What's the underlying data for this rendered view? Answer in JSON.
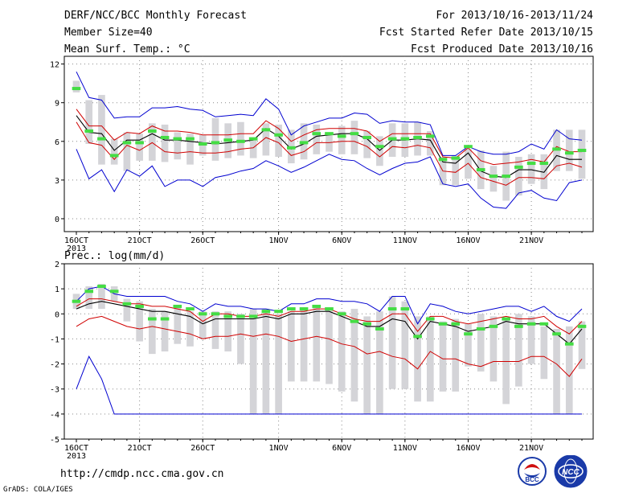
{
  "header": {
    "left": [
      "DERF/NCC/BCC Monthly Forecast",
      "Member Size=40",
      "Mean Surf. Temp.: °C"
    ],
    "right": [
      "For 2013/10/16-2013/11/24",
      "Fcst Started Refer Date 2013/10/15",
      "Fcst Produced Date 2013/10/16"
    ]
  },
  "footer": {
    "url": "http://cmdp.ncc.cma.gov.cn",
    "grads": "GrADS: COLA/IGES",
    "logos": [
      "BCC",
      "NCC"
    ]
  },
  "colors": {
    "envelope": "#0000d0",
    "percentile": "#d00000",
    "mean": "#000000",
    "bar": "#d4d4d8",
    "marker": "#44dd44",
    "grid": "#888888"
  },
  "chart_data": [
    {
      "type": "line",
      "title": "Mean Surf. Temp.: °C",
      "days": 40,
      "xticks": [
        {
          "day": 0,
          "label": "16OCT"
        },
        {
          "day": 5,
          "label": "21OCT"
        },
        {
          "day": 10,
          "label": "26OCT"
        },
        {
          "day": 16,
          "label": "1NOV"
        },
        {
          "day": 21,
          "label": "6NOV"
        },
        {
          "day": 26,
          "label": "11NOV"
        },
        {
          "day": 31,
          "label": "16NOV"
        },
        {
          "day": 36,
          "label": "21NOV"
        }
      ],
      "xlabel_year": "2013",
      "ylim": [
        -1,
        12.6
      ],
      "yticks": [
        0,
        3,
        6,
        9,
        12
      ],
      "grid": true,
      "series": [
        {
          "name": "",
          "role": "max",
          "values": [
            11.4,
            9.4,
            9.2,
            7.8,
            7.9,
            7.9,
            8.6,
            8.6,
            8.7,
            8.5,
            8.4,
            7.9,
            8,
            8.1,
            8,
            9.3,
            8.5,
            6.5,
            7.2,
            7.5,
            7.8,
            7.8,
            8.2,
            8.1,
            7.4,
            7.6,
            7.5,
            7.5,
            7.3,
            4.9,
            4.9,
            5.6,
            5.2,
            5,
            5,
            5.2,
            5.8,
            5.4,
            6.9,
            6.2,
            6.1
          ]
        },
        {
          "name": "",
          "role": "p75",
          "values": [
            8.5,
            7.2,
            7.2,
            6.1,
            6.7,
            6.6,
            7.2,
            6.8,
            6.8,
            6.7,
            6.5,
            6.5,
            6.5,
            6.6,
            6.6,
            7.6,
            7,
            6,
            6.5,
            6.9,
            7,
            7,
            7,
            6.8,
            6,
            6.6,
            6.6,
            6.6,
            6.6,
            4.8,
            4.7,
            5.5,
            4.5,
            4.2,
            4.3,
            4.4,
            4.6,
            4.4,
            5.6,
            5.2,
            5.2
          ]
        },
        {
          "name": "",
          "role": "mean",
          "values": [
            8,
            6.7,
            6.6,
            5.3,
            6.1,
            6.1,
            6.6,
            6.1,
            6.1,
            6,
            5.9,
            5.8,
            5.9,
            6,
            6.1,
            7,
            6.4,
            5.4,
            5.8,
            6.4,
            6.5,
            6.6,
            6.6,
            6.2,
            5.3,
            6.1,
            6.1,
            6.2,
            6.1,
            4.4,
            4.3,
            5.1,
            3.7,
            3.3,
            3.2,
            3.8,
            3.8,
            3.6,
            4.9,
            4.6,
            4.6
          ]
        },
        {
          "name": "",
          "role": "p25",
          "values": [
            7.5,
            5.9,
            5.7,
            4.6,
            5.7,
            5.3,
            5.9,
            5.2,
            5.1,
            5.2,
            5.1,
            5.1,
            5.2,
            5.4,
            5.5,
            6.3,
            5.9,
            4.9,
            5.2,
            5.9,
            5.9,
            6,
            6,
            5.6,
            4.8,
            5.6,
            5.5,
            5.7,
            5.5,
            3.7,
            3.6,
            4.3,
            3.2,
            2.9,
            2.6,
            3.2,
            3.2,
            3.1,
            4.1,
            4.3,
            4
          ]
        },
        {
          "name": "",
          "role": "min",
          "values": [
            5.4,
            3.1,
            3.8,
            2.1,
            3.8,
            3.3,
            4.1,
            2.5,
            3,
            3,
            2.5,
            3.2,
            3.4,
            3.7,
            3.9,
            4.5,
            4.1,
            3.6,
            4,
            4.5,
            5,
            4.6,
            4.5,
            3.9,
            3.4,
            3.9,
            4.3,
            4.4,
            4.8,
            2.7,
            2.5,
            2.7,
            1.6,
            0.9,
            0.8,
            2,
            2.2,
            1.6,
            1.4,
            2.8,
            3
          ]
        },
        {
          "name": "",
          "role": "observed",
          "values": [
            10.1,
            6.8,
            6.2,
            4.9,
            5.9,
            5.9,
            6.8,
            6.3,
            6.2,
            6.2,
            5.8,
            5.9,
            6.1,
            6,
            6.2,
            6.9,
            6.5,
            5.5,
            5.9,
            6.6,
            6.6,
            6.4,
            6.6,
            6.3,
            5.6,
            6.2,
            6.2,
            6.3,
            6.4,
            4.6,
            4.7,
            5.6,
            3.8,
            3.3,
            3.3,
            4,
            4.3,
            4.3,
            5.4,
            5.1,
            5.3
          ]
        }
      ],
      "bars": [
        [
          9.8,
          10.7
        ],
        [
          5.8,
          9.2
        ],
        [
          4.2,
          9.6
        ],
        [
          4.2,
          6.2
        ],
        [
          3.7,
          6.7
        ],
        [
          4.5,
          6.6
        ],
        [
          4.5,
          7.4
        ],
        [
          4.4,
          7.3
        ],
        [
          4.6,
          6.7
        ],
        [
          4.2,
          6.6
        ],
        [
          4.9,
          6.5
        ],
        [
          4.5,
          7.8
        ],
        [
          4.7,
          7.4
        ],
        [
          4.9,
          7.5
        ],
        [
          4.7,
          6.3
        ],
        [
          4.9,
          7.4
        ],
        [
          4.8,
          7.3
        ],
        [
          4.3,
          6.9
        ],
        [
          4.6,
          7.4
        ],
        [
          5,
          7.3
        ],
        [
          5.2,
          6.7
        ],
        [
          5,
          7.2
        ],
        [
          5,
          7.6
        ],
        [
          4.7,
          6.8
        ],
        [
          4.1,
          6.4
        ],
        [
          4.8,
          7.4
        ],
        [
          4.8,
          7.4
        ],
        [
          4.9,
          7.5
        ],
        [
          4.9,
          6.8
        ],
        [
          2.6,
          4.8
        ],
        [
          2.6,
          4.9
        ],
        [
          3.1,
          5.4
        ],
        [
          2.3,
          5.3
        ],
        [
          2.1,
          4.1
        ],
        [
          1.4,
          5.2
        ],
        [
          1.8,
          4.8
        ],
        [
          2.7,
          5
        ],
        [
          2.3,
          5
        ],
        [
          3.7,
          6.9
        ],
        [
          3.7,
          6.9
        ],
        [
          3.1,
          6.9
        ]
      ]
    },
    {
      "type": "line",
      "title": "Prec.: log(mm/d)",
      "days": 40,
      "xticks": [
        {
          "day": 0,
          "label": "16OCT"
        },
        {
          "day": 5,
          "label": "21OCT"
        },
        {
          "day": 10,
          "label": "26OCT"
        },
        {
          "day": 16,
          "label": "1NOV"
        },
        {
          "day": 21,
          "label": "6NOV"
        },
        {
          "day": 26,
          "label": "11NOV"
        },
        {
          "day": 31,
          "label": "16NOV"
        },
        {
          "day": 36,
          "label": "21NOV"
        }
      ],
      "xlabel_year": "2013",
      "ylim": [
        -5,
        2
      ],
      "yticks": [
        -5,
        -4,
        -3,
        -2,
        -1,
        0,
        1,
        2
      ],
      "grid": true,
      "series": [
        {
          "name": "",
          "role": "max",
          "values": [
            0.5,
            1,
            1.1,
            0.8,
            0.7,
            0.7,
            0.7,
            0.7,
            0.5,
            0.4,
            0.1,
            0.4,
            0.3,
            0.3,
            0.2,
            0.2,
            0.1,
            0.4,
            0.4,
            0.6,
            0.6,
            0.5,
            0.5,
            0.4,
            0.1,
            0.7,
            0.7,
            -0.4,
            0.4,
            0.3,
            0.1,
            0,
            0.1,
            0.2,
            0.3,
            0.3,
            0.1,
            0.3,
            -0.1,
            -0.3,
            0.2
          ]
        },
        {
          "name": "",
          "role": "p75",
          "values": [
            0.3,
            0.6,
            0.6,
            0.5,
            0.4,
            0.4,
            0.3,
            0.3,
            0.2,
            0.1,
            -0.3,
            0,
            0,
            -0.1,
            -0.1,
            0,
            -0.1,
            0.1,
            0.1,
            0.2,
            0.2,
            0,
            -0.2,
            -0.3,
            -0.3,
            0,
            0,
            -0.7,
            -0.1,
            -0.1,
            -0.3,
            -0.4,
            -0.3,
            -0.2,
            -0.1,
            -0.2,
            -0.2,
            -0.1,
            -0.5,
            -0.8,
            -0.3
          ]
        },
        {
          "name": "",
          "role": "mean",
          "values": [
            0.2,
            0.4,
            0.5,
            0.4,
            0.3,
            0.2,
            0.1,
            0.1,
            0,
            -0.1,
            -0.4,
            -0.2,
            -0.2,
            -0.2,
            -0.2,
            -0.1,
            -0.2,
            0,
            0,
            0.1,
            0.1,
            -0.1,
            -0.3,
            -0.5,
            -0.5,
            -0.2,
            -0.3,
            -1,
            -0.3,
            -0.4,
            -0.5,
            -0.7,
            -0.6,
            -0.5,
            -0.3,
            -0.4,
            -0.4,
            -0.4,
            -0.8,
            -1.2,
            -0.6
          ]
        },
        {
          "name": "",
          "role": "p25",
          "values": [
            -0.5,
            -0.2,
            -0.1,
            -0.3,
            -0.5,
            -0.6,
            -0.5,
            -0.6,
            -0.7,
            -0.8,
            -1,
            -0.9,
            -0.9,
            -0.8,
            -0.9,
            -0.8,
            -0.9,
            -1.1,
            -1,
            -0.9,
            -1,
            -1.2,
            -1.3,
            -1.6,
            -1.5,
            -1.7,
            -1.8,
            -2.2,
            -1.5,
            -1.8,
            -1.8,
            -2,
            -2.1,
            -1.9,
            -1.9,
            -1.9,
            -1.7,
            -1.7,
            -2,
            -2.5,
            -1.8
          ]
        },
        {
          "name": "",
          "role": "min",
          "values": [
            -3,
            -1.7,
            -2.6,
            -4,
            -4,
            -4,
            -4,
            -4,
            -4,
            -4,
            -4,
            -4,
            -4,
            -4,
            -4,
            -4,
            -4,
            -4,
            -4,
            -4,
            -4,
            -4,
            -4,
            -4,
            -4,
            -4,
            -4,
            -4,
            -4,
            -4,
            -4,
            -4,
            -4,
            -4,
            -4,
            -4,
            -4,
            -4,
            -4,
            -4,
            -4
          ]
        },
        {
          "name": "",
          "role": "observed",
          "values": [
            0.5,
            0.9,
            1.1,
            0.9,
            0.4,
            0.3,
            -0.2,
            -0.2,
            0.3,
            0.2,
            0,
            0,
            -0.1,
            -0.1,
            -0.1,
            0.1,
            0.1,
            0.2,
            0.2,
            0.3,
            0.2,
            0,
            -0.3,
            -0.4,
            -0.6,
            0.2,
            0.2,
            -0.9,
            -0.2,
            -0.4,
            -0.4,
            -0.8,
            -0.6,
            -0.5,
            -0.2,
            -0.5,
            -0.4,
            -0.4,
            -0.8,
            -1.2,
            -0.5
          ]
        }
      ],
      "bars": [
        [
          0.2,
          0.8
        ],
        [
          0.2,
          1.1
        ],
        [
          0.2,
          1.2
        ],
        [
          0.5,
          1.1
        ],
        [
          -0.3,
          0.6
        ],
        [
          -1.1,
          0.5
        ],
        [
          -1.6,
          0.2
        ],
        [
          -1.5,
          0.1
        ],
        [
          -1.2,
          0.3
        ],
        [
          -1.3,
          0.1
        ],
        [
          -1,
          0.1
        ],
        [
          -1.4,
          0.1
        ],
        [
          -1.5,
          0.1
        ],
        [
          -2,
          0
        ],
        [
          -4,
          0.2
        ],
        [
          -4,
          0.2
        ],
        [
          -4,
          0
        ],
        [
          -2.7,
          0.1
        ],
        [
          -2.7,
          0.2
        ],
        [
          -2.7,
          0.3
        ],
        [
          -2.8,
          0.2
        ],
        [
          -3.1,
          0.1
        ],
        [
          -3.5,
          0.2
        ],
        [
          -4,
          -0.1
        ],
        [
          -4,
          0.1
        ],
        [
          -3,
          0.7
        ],
        [
          -3,
          0.5
        ],
        [
          -3.5,
          -0.1
        ],
        [
          -3.5,
          -0.1
        ],
        [
          -3.1,
          -0.3
        ],
        [
          -3.1,
          -0.2
        ],
        [
          -2.1,
          -0.4
        ],
        [
          -2.3,
          0
        ],
        [
          -2.7,
          -0.1
        ],
        [
          -3.6,
          -0.2
        ],
        [
          -2.9,
          0
        ],
        [
          -2,
          -0.1
        ],
        [
          -2.6,
          -0.5
        ],
        [
          -4,
          -0.6
        ],
        [
          -4,
          -0.5
        ],
        [
          -2.2,
          -0.3
        ]
      ]
    }
  ]
}
